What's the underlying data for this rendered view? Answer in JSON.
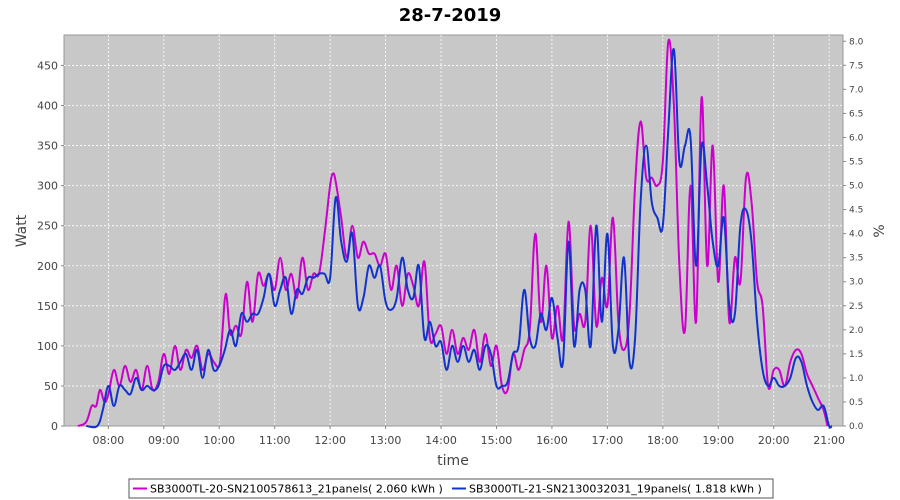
{
  "chart_data": {
    "type": "line",
    "title": "28-7-2019",
    "xlabel": "time",
    "ylabel": "Watt",
    "y2label": "%",
    "xlim": [
      7.2,
      21.25
    ],
    "ylim": [
      0,
      488
    ],
    "y2lim": [
      0,
      8.13
    ],
    "grid": true,
    "legend_position": "bottom",
    "x_ticks": [
      8,
      9,
      10,
      11,
      12,
      13,
      14,
      15,
      16,
      17,
      18,
      19,
      20,
      21
    ],
    "x_tick_labels": [
      "08:00",
      "09:00",
      "10:00",
      "11:00",
      "12:00",
      "13:00",
      "14:00",
      "15:00",
      "16:00",
      "17:00",
      "18:00",
      "19:00",
      "20:00",
      "21:00"
    ],
    "y_ticks": [
      0,
      50,
      100,
      150,
      200,
      250,
      300,
      350,
      400,
      450
    ],
    "y_tick_labels": [
      "0",
      "50",
      "100",
      "150",
      "200",
      "250",
      "300",
      "350",
      "400",
      "450"
    ],
    "y2_ticks": [
      0,
      0.5,
      1,
      1.5,
      2,
      2.5,
      3,
      3.5,
      4,
      4.5,
      5,
      5.5,
      6,
      6.5,
      7,
      7.5,
      8
    ],
    "y2_tick_labels": [
      "0.0",
      "0.5",
      "1.0",
      "1.5",
      "2.0",
      "2.5",
      "3.0",
      "3.5",
      "4.0",
      "4.5",
      "5.0",
      "5.5",
      "6.0",
      "6.5",
      "7.0",
      "7.5",
      "8.0"
    ],
    "series": [
      {
        "name": "SB3000TL-20-SN2100578613_21panels( 2.060 kWh )",
        "color": "#cc00cc",
        "x": [
          7.45,
          7.6,
          7.7,
          7.78,
          7.85,
          7.93,
          8.0,
          8.1,
          8.2,
          8.3,
          8.4,
          8.5,
          8.6,
          8.7,
          8.8,
          8.9,
          9.0,
          9.1,
          9.2,
          9.3,
          9.4,
          9.5,
          9.6,
          9.7,
          9.8,
          9.9,
          10.0,
          10.05,
          10.12,
          10.2,
          10.3,
          10.4,
          10.5,
          10.6,
          10.7,
          10.8,
          10.9,
          11.0,
          11.1,
          11.2,
          11.3,
          11.4,
          11.5,
          11.6,
          11.7,
          11.8,
          11.9,
          12.0,
          12.05,
          12.1,
          12.2,
          12.3,
          12.4,
          12.5,
          12.6,
          12.7,
          12.8,
          12.9,
          13.0,
          13.1,
          13.2,
          13.3,
          13.4,
          13.5,
          13.6,
          13.7,
          13.8,
          13.9,
          14.0,
          14.1,
          14.2,
          14.3,
          14.4,
          14.5,
          14.6,
          14.7,
          14.8,
          14.9,
          15.0,
          15.1,
          15.2,
          15.3,
          15.4,
          15.5,
          15.6,
          15.7,
          15.8,
          15.9,
          16.0,
          16.1,
          16.2,
          16.3,
          16.4,
          16.5,
          16.6,
          16.7,
          16.8,
          16.9,
          17.0,
          17.1,
          17.2,
          17.3,
          17.4,
          17.5,
          17.6,
          17.7,
          17.8,
          17.9,
          18.0,
          18.1,
          18.2,
          18.3,
          18.4,
          18.5,
          18.6,
          18.7,
          18.8,
          18.9,
          19.0,
          19.1,
          19.2,
          19.3,
          19.4,
          19.5,
          19.6,
          19.7,
          19.8,
          19.9,
          20.0,
          20.1,
          20.2,
          20.3,
          20.4,
          20.5,
          20.6,
          20.7,
          20.8,
          20.9,
          20.97
        ],
        "values": [
          0,
          5,
          25,
          25,
          45,
          30,
          40,
          70,
          50,
          75,
          55,
          70,
          45,
          75,
          45,
          55,
          90,
          65,
          100,
          70,
          95,
          85,
          100,
          70,
          90,
          80,
          75,
          110,
          165,
          115,
          125,
          115,
          180,
          130,
          190,
          175,
          190,
          170,
          210,
          170,
          190,
          160,
          210,
          170,
          190,
          190,
          240,
          300,
          315,
          305,
          260,
          210,
          250,
          210,
          230,
          215,
          215,
          200,
          215,
          170,
          200,
          150,
          190,
          175,
          150,
          205,
          110,
          115,
          125,
          90,
          120,
          90,
          110,
          95,
          120,
          80,
          115,
          75,
          100,
          50,
          45,
          90,
          70,
          95,
          120,
          240,
          130,
          200,
          110,
          150,
          110,
          255,
          125,
          140,
          130,
          250,
          125,
          185,
          150,
          260,
          130,
          95,
          140,
          300,
          380,
          310,
          310,
          300,
          330,
          480,
          400,
          200,
          120,
          300,
          130,
          410,
          200,
          350,
          180,
          300,
          130,
          210,
          180,
          310,
          280,
          180,
          150,
          50,
          70,
          70,
          50,
          80,
          95,
          90,
          65,
          50,
          35,
          20,
          0
        ]
      },
      {
        "name": "SB3000TL-21-SN2130032031_19panels( 1.818 kWh )",
        "color": "#1133cc",
        "x": [
          7.6,
          7.8,
          7.9,
          8.0,
          8.1,
          8.2,
          8.3,
          8.4,
          8.5,
          8.6,
          8.7,
          8.8,
          8.9,
          9.0,
          9.1,
          9.2,
          9.3,
          9.4,
          9.5,
          9.6,
          9.7,
          9.8,
          9.9,
          10.0,
          10.1,
          10.2,
          10.3,
          10.4,
          10.5,
          10.6,
          10.7,
          10.8,
          10.9,
          11.0,
          11.1,
          11.2,
          11.3,
          11.4,
          11.5,
          11.6,
          11.7,
          11.8,
          11.9,
          12.0,
          12.1,
          12.2,
          12.3,
          12.4,
          12.5,
          12.6,
          12.7,
          12.8,
          12.9,
          13.0,
          13.1,
          13.2,
          13.3,
          13.4,
          13.5,
          13.6,
          13.7,
          13.8,
          13.9,
          14.0,
          14.1,
          14.2,
          14.3,
          14.4,
          14.5,
          14.6,
          14.7,
          14.8,
          14.9,
          15.0,
          15.1,
          15.2,
          15.3,
          15.4,
          15.5,
          15.6,
          15.7,
          15.8,
          15.9,
          16.0,
          16.1,
          16.2,
          16.3,
          16.4,
          16.5,
          16.6,
          16.7,
          16.8,
          16.9,
          17.0,
          17.1,
          17.2,
          17.3,
          17.4,
          17.5,
          17.6,
          17.7,
          17.8,
          17.9,
          18.0,
          18.1,
          18.2,
          18.3,
          18.4,
          18.5,
          18.6,
          18.7,
          18.8,
          18.9,
          19.0,
          19.1,
          19.2,
          19.3,
          19.4,
          19.5,
          19.6,
          19.7,
          19.8,
          19.9,
          20.0,
          20.1,
          20.2,
          20.3,
          20.4,
          20.5,
          20.6,
          20.7,
          20.8,
          20.9,
          21.0,
          21.05
        ],
        "values": [
          0,
          0,
          20,
          50,
          25,
          50,
          45,
          40,
          60,
          45,
          50,
          45,
          50,
          75,
          75,
          70,
          80,
          90,
          70,
          95,
          60,
          95,
          70,
          75,
          95,
          120,
          100,
          140,
          130,
          140,
          140,
          160,
          190,
          150,
          170,
          185,
          140,
          170,
          165,
          185,
          185,
          190,
          190,
          185,
          285,
          230,
          205,
          240,
          150,
          160,
          200,
          185,
          200,
          155,
          145,
          160,
          210,
          170,
          160,
          200,
          110,
          130,
          100,
          105,
          70,
          100,
          80,
          100,
          80,
          95,
          70,
          100,
          90,
          50,
          50,
          55,
          90,
          100,
          170,
          110,
          100,
          140,
          120,
          160,
          110,
          80,
          230,
          100,
          170,
          170,
          100,
          250,
          130,
          240,
          100,
          120,
          210,
          80,
          110,
          280,
          350,
          280,
          260,
          250,
          370,
          470,
          330,
          350,
          360,
          200,
          350,
          300,
          230,
          200,
          260,
          150,
          140,
          250,
          270,
          230,
          130,
          70,
          50,
          60,
          50,
          50,
          60,
          85,
          80,
          50,
          30,
          20,
          25,
          0,
          0
        ]
      }
    ]
  }
}
